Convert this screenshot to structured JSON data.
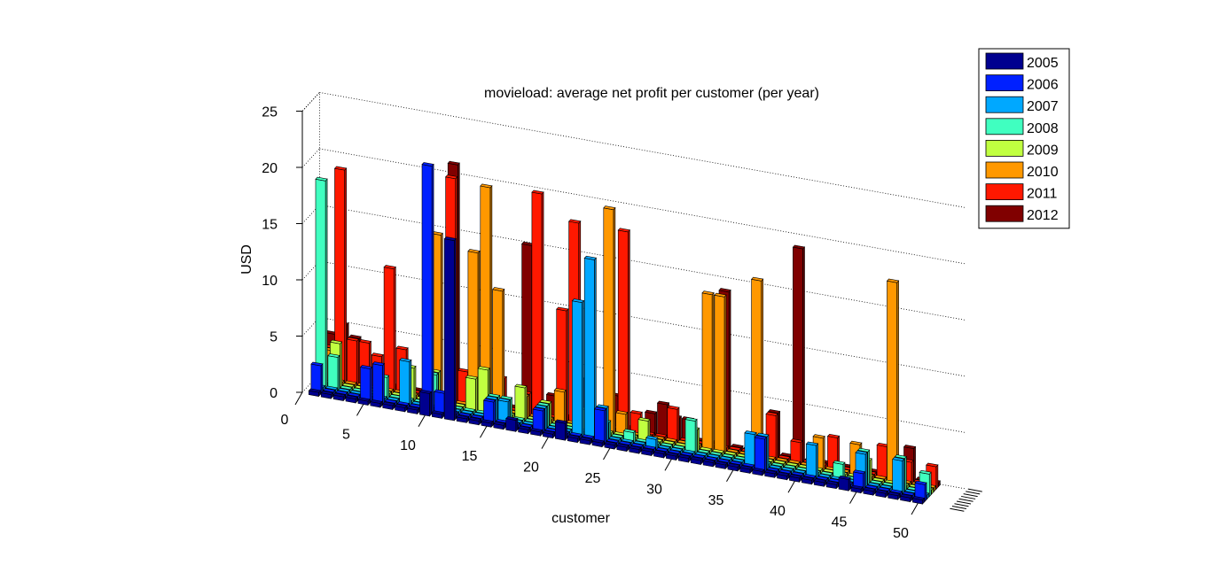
{
  "chart_data": {
    "type": "bar3d",
    "title": "movieload: average net profit per customer (per year)",
    "xlabel": "customer",
    "ylabel": "",
    "zlabel": "USD",
    "zlim": [
      0,
      25
    ],
    "z_ticks": [
      "0",
      "5",
      "10",
      "15",
      "20",
      "25"
    ],
    "x_ticks": [
      "0",
      "5",
      "10",
      "15",
      "20",
      "25",
      "30",
      "35",
      "40",
      "45",
      "50"
    ],
    "legend_position": "top-right",
    "grid": true,
    "customers": [
      1,
      2,
      3,
      4,
      5,
      6,
      7,
      8,
      9,
      10,
      11,
      12,
      13,
      14,
      15,
      16,
      17,
      18,
      19,
      20,
      21,
      22,
      23,
      24,
      25,
      26,
      27,
      28,
      29,
      30,
      31,
      32,
      33,
      34,
      35,
      36,
      37,
      38,
      39,
      40,
      41,
      42,
      43,
      44,
      45,
      46,
      47,
      48,
      49,
      50
    ],
    "series": [
      {
        "name": "2005",
        "color": "#00008f",
        "values": [
          0,
          0,
          0,
          0,
          0,
          0,
          0,
          0,
          0,
          2,
          0,
          16,
          0,
          0,
          0,
          0,
          1,
          0,
          0,
          0,
          1.5,
          0,
          0,
          0,
          0,
          0,
          0,
          0,
          0,
          0,
          0,
          0,
          0,
          0,
          0,
          0,
          0,
          0,
          0,
          0,
          0,
          0,
          0,
          1,
          0,
          0,
          0,
          0,
          0,
          0
        ]
      },
      {
        "name": "2006",
        "color": "#0020ff",
        "values": [
          2.5,
          0,
          0,
          0,
          3,
          3.5,
          0,
          0,
          0,
          22,
          2,
          0,
          0,
          0,
          2,
          0,
          0,
          0,
          2,
          0,
          0,
          0,
          0,
          3,
          0,
          0,
          0,
          0,
          0,
          0,
          0,
          0,
          0,
          0,
          0,
          0,
          3,
          0,
          0,
          0,
          0,
          0,
          0,
          0,
          1.5,
          0,
          0,
          0,
          0,
          1.5
        ]
      },
      {
        "name": "2007",
        "color": "#00a8ff",
        "values": [
          0,
          0,
          0,
          0,
          0,
          0,
          0,
          4,
          0,
          0,
          0,
          0,
          0,
          0,
          2,
          2,
          0,
          0,
          2,
          0,
          0,
          12,
          16,
          3,
          0,
          0,
          0,
          1,
          0,
          0,
          0,
          0,
          0,
          0,
          0,
          3,
          3,
          0,
          0,
          0,
          3,
          0,
          0,
          0,
          3,
          0,
          0,
          3,
          0,
          0
        ]
      },
      {
        "name": "2008",
        "color": "#40ffc0",
        "values": [
          18.5,
          3,
          0,
          0,
          0,
          2,
          0,
          0,
          0,
          3,
          0,
          0,
          0,
          0,
          2,
          2,
          0,
          0,
          2,
          0,
          0,
          0,
          0,
          1.5,
          0,
          1,
          0,
          0,
          0,
          0,
          3,
          0,
          0,
          0,
          0,
          0,
          0,
          0,
          0,
          0,
          0,
          0,
          1.5,
          0,
          3,
          0,
          0,
          3,
          0,
          2
        ]
      },
      {
        "name": "2009",
        "color": "#c0ff40",
        "values": [
          0,
          4,
          0,
          0,
          0,
          0,
          0,
          3,
          0,
          3,
          0,
          0,
          3,
          4,
          0,
          0,
          3,
          0,
          2,
          0,
          0,
          2,
          0,
          0,
          0,
          0,
          2,
          0,
          0,
          0,
          2,
          0,
          0,
          0,
          0,
          2,
          0,
          0,
          0,
          0,
          0,
          0,
          0,
          0,
          2,
          0,
          0,
          0,
          0,
          0
        ]
      },
      {
        "name": "2010",
        "color": "#ff9800",
        "values": [
          3,
          0,
          0,
          0,
          0,
          0,
          0,
          0,
          0,
          15,
          0,
          0,
          14,
          20,
          11,
          0,
          2,
          0,
          0,
          3,
          0,
          0,
          0,
          20,
          2,
          0,
          0,
          0,
          0,
          0,
          0,
          14,
          14,
          0,
          0,
          16,
          0,
          0,
          0,
          0,
          3,
          0,
          0,
          3,
          0,
          0,
          18,
          0,
          0,
          0
        ]
      },
      {
        "name": "2011",
        "color": "#ff1800",
        "values": [
          3,
          19,
          4,
          4,
          3,
          11,
          4,
          0,
          0,
          0,
          20,
          3,
          0,
          0,
          3,
          0,
          2,
          20,
          0,
          10,
          18,
          0,
          0,
          0,
          18,
          2,
          0,
          0,
          3,
          0,
          0,
          0,
          0,
          0,
          0,
          0,
          4,
          0,
          2,
          0,
          0,
          3,
          0,
          0,
          0,
          3,
          0,
          2,
          0,
          2
        ]
      },
      {
        "name": "2012",
        "color": "#800000",
        "values": [
          4,
          5,
          4,
          0,
          0,
          0,
          0,
          0,
          3,
          0,
          21,
          0,
          3,
          0,
          0,
          0,
          15,
          0,
          2,
          0,
          0,
          4,
          0,
          3,
          0,
          0,
          2,
          3,
          2,
          2,
          0,
          0,
          14,
          0,
          0,
          0,
          4,
          0,
          19,
          0,
          0,
          0,
          0,
          0,
          0,
          0,
          0,
          3,
          0,
          0
        ]
      }
    ]
  }
}
